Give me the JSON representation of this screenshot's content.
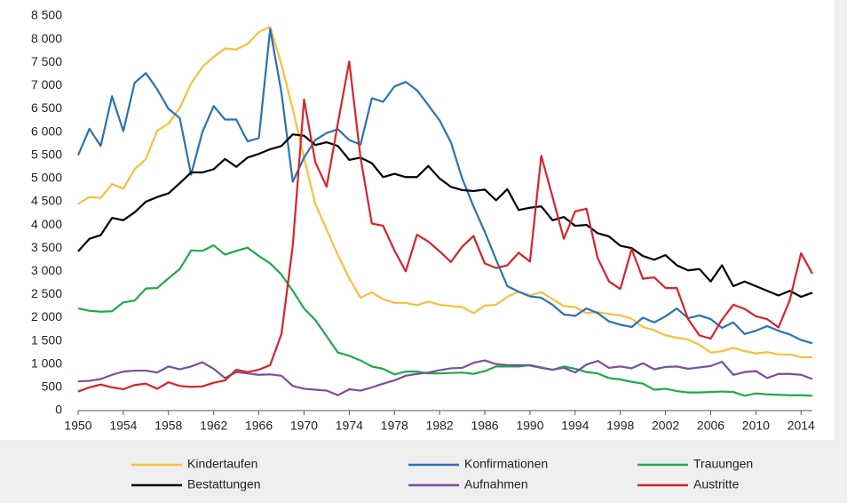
{
  "chart_data": {
    "type": "line",
    "x": [
      1950,
      1951,
      1952,
      1953,
      1954,
      1955,
      1956,
      1957,
      1958,
      1959,
      1960,
      1961,
      1962,
      1963,
      1964,
      1965,
      1966,
      1967,
      1968,
      1969,
      1970,
      1971,
      1972,
      1973,
      1974,
      1975,
      1976,
      1977,
      1978,
      1979,
      1980,
      1981,
      1982,
      1983,
      1984,
      1985,
      1986,
      1987,
      1988,
      1989,
      1990,
      1991,
      1992,
      1993,
      1994,
      1995,
      1996,
      1997,
      1998,
      1999,
      2000,
      2001,
      2002,
      2003,
      2004,
      2005,
      2006,
      2007,
      2008,
      2009,
      2010,
      2011,
      2012,
      2013,
      2014,
      2015
    ],
    "series": [
      {
        "name": "Kindertaufen",
        "color": "#fbbf3a",
        "values": [
          4450,
          4600,
          4580,
          4880,
          4780,
          5200,
          5420,
          6030,
          6180,
          6520,
          7050,
          7400,
          7620,
          7800,
          7780,
          7900,
          8150,
          8270,
          7450,
          6500,
          5450,
          4450,
          3900,
          3350,
          2850,
          2430,
          2550,
          2400,
          2320,
          2320,
          2270,
          2350,
          2280,
          2250,
          2230,
          2100,
          2260,
          2280,
          2450,
          2560,
          2480,
          2550,
          2400,
          2250,
          2230,
          2100,
          2120,
          2080,
          2050,
          1980,
          1800,
          1730,
          1620,
          1570,
          1530,
          1420,
          1250,
          1280,
          1350,
          1280,
          1230,
          1260,
          1210,
          1210,
          1150,
          1150
        ]
      },
      {
        "name": "Konfirmationen",
        "color": "#2a73b5",
        "values": [
          5500,
          6070,
          5700,
          6770,
          6020,
          7060,
          7270,
          6920,
          6500,
          6300,
          5080,
          6000,
          6560,
          6270,
          6270,
          5800,
          5870,
          8220,
          6850,
          4930,
          5450,
          5830,
          5980,
          6060,
          5830,
          5730,
          6730,
          6650,
          6980,
          7080,
          6900,
          6580,
          6250,
          5780,
          5000,
          4400,
          3850,
          3250,
          2680,
          2560,
          2460,
          2430,
          2280,
          2070,
          2040,
          2200,
          2100,
          1920,
          1850,
          1800,
          2000,
          1900,
          2030,
          2200,
          1990,
          2050,
          1970,
          1780,
          1900,
          1650,
          1720,
          1820,
          1720,
          1640,
          1520,
          1450
        ]
      },
      {
        "name": "Trauungen",
        "color": "#1faa4b",
        "values": [
          2200,
          2150,
          2130,
          2140,
          2330,
          2370,
          2630,
          2640,
          2850,
          3050,
          3450,
          3440,
          3560,
          3360,
          3440,
          3510,
          3330,
          3170,
          2930,
          2580,
          2200,
          1950,
          1600,
          1250,
          1180,
          1080,
          950,
          900,
          780,
          840,
          840,
          800,
          800,
          810,
          820,
          790,
          850,
          950,
          950,
          950,
          980,
          930,
          880,
          950,
          900,
          830,
          800,
          700,
          670,
          620,
          580,
          450,
          470,
          420,
          390,
          390,
          400,
          410,
          400,
          320,
          370,
          350,
          340,
          330,
          330,
          320
        ]
      },
      {
        "name": "Bestattungen",
        "color": "#000000",
        "values": [
          3430,
          3700,
          3780,
          4150,
          4100,
          4270,
          4500,
          4600,
          4680,
          4900,
          5130,
          5130,
          5200,
          5420,
          5250,
          5450,
          5530,
          5630,
          5700,
          5950,
          5920,
          5720,
          5780,
          5700,
          5400,
          5450,
          5330,
          5030,
          5100,
          5030,
          5030,
          5270,
          5000,
          4820,
          4750,
          4730,
          4760,
          4530,
          4770,
          4320,
          4370,
          4400,
          4100,
          4170,
          3980,
          4000,
          3820,
          3750,
          3550,
          3500,
          3330,
          3250,
          3350,
          3130,
          3020,
          3050,
          2780,
          3130,
          2680,
          2780,
          2680,
          2580,
          2480,
          2580,
          2450,
          2540
        ]
      },
      {
        "name": "Aufnahmen",
        "color": "#7b4f9e",
        "values": [
          630,
          640,
          680,
          770,
          840,
          860,
          860,
          820,
          950,
          890,
          950,
          1040,
          900,
          700,
          830,
          800,
          770,
          780,
          750,
          530,
          470,
          450,
          430,
          330,
          460,
          430,
          500,
          580,
          650,
          750,
          790,
          820,
          870,
          910,
          920,
          1030,
          1080,
          1000,
          980,
          980,
          970,
          920,
          880,
          920,
          820,
          990,
          1070,
          920,
          950,
          910,
          1020,
          890,
          940,
          950,
          900,
          930,
          960,
          1050,
          770,
          830,
          850,
          700,
          790,
          790,
          770,
          680
        ]
      },
      {
        "name": "Austritte",
        "color": "#d7242b",
        "values": [
          410,
          500,
          560,
          500,
          460,
          550,
          580,
          470,
          610,
          530,
          510,
          520,
          600,
          650,
          880,
          830,
          880,
          980,
          1650,
          3550,
          6700,
          5350,
          4820,
          6200,
          7520,
          5450,
          4030,
          3980,
          3450,
          3000,
          3790,
          3640,
          3430,
          3200,
          3530,
          3760,
          3170,
          3070,
          3130,
          3400,
          3210,
          5490,
          4600,
          3700,
          4290,
          4350,
          3280,
          2780,
          2620,
          3480,
          2840,
          2870,
          2640,
          2640,
          1970,
          1620,
          1550,
          1960,
          2280,
          2190,
          2030,
          1970,
          1790,
          2380,
          3390,
          2950
        ]
      }
    ],
    "xlim": [
      1950,
      2015
    ],
    "xticks": [
      1950,
      1954,
      1958,
      1962,
      1966,
      1970,
      1974,
      1978,
      1982,
      1986,
      1990,
      1994,
      1998,
      2002,
      2006,
      2010,
      2014
    ],
    "ylim": [
      0,
      8500
    ],
    "yticks": [
      0,
      500,
      {
        "value": 1000,
        "label": "1 000"
      },
      {
        "value": 1500,
        "label": "1 500"
      },
      {
        "value": 2000,
        "label": "2 000"
      },
      {
        "value": 2500,
        "label": "2 500"
      },
      {
        "value": 3000,
        "label": "3 000"
      },
      {
        "value": 3500,
        "label": "3 500"
      },
      {
        "value": 4000,
        "label": "4 000"
      },
      {
        "value": 4500,
        "label": "4 500"
      },
      {
        "value": 5000,
        "label": "5 000"
      },
      {
        "value": 5500,
        "label": "5 500"
      },
      {
        "value": 6000,
        "label": "6 000"
      },
      {
        "value": 6500,
        "label": "6 500"
      },
      {
        "value": 7000,
        "label": "7 000"
      },
      {
        "value": 7500,
        "label": "7 500"
      },
      {
        "value": 8000,
        "label": "8 000"
      },
      {
        "value": 8500,
        "label": "8 500"
      }
    ],
    "grid": false,
    "legend": "bottom"
  }
}
